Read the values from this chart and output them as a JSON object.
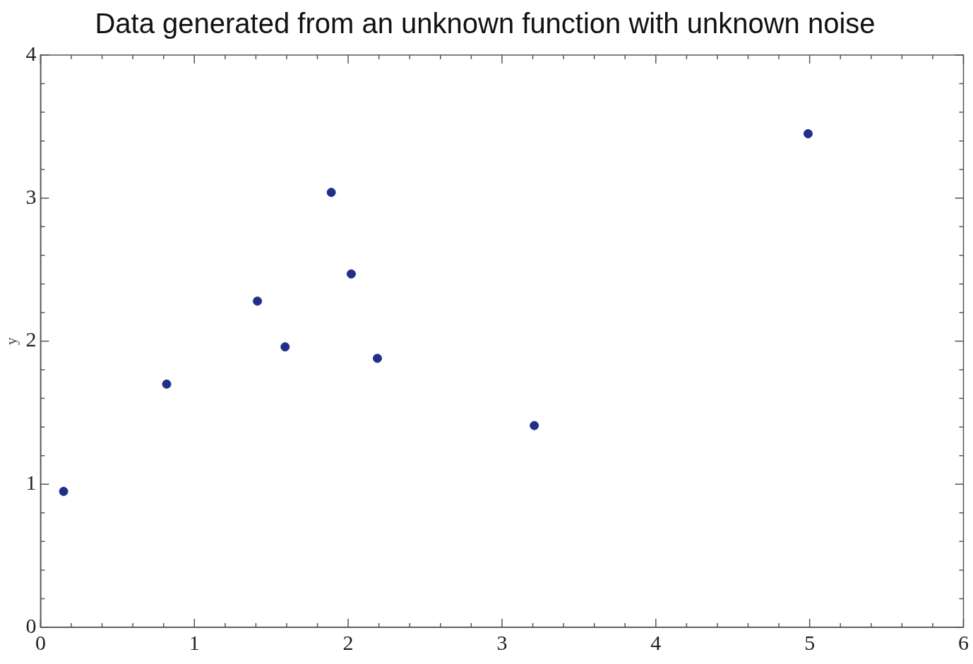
{
  "chart_data": {
    "type": "scatter",
    "title": "Data generated from an unknown function with unknown noise",
    "ylabel": "y",
    "x": [
      0.15,
      0.82,
      1.41,
      1.59,
      1.89,
      2.02,
      2.19,
      3.21,
      4.99
    ],
    "series": [
      {
        "color": "#1f2f8a",
        "values": [
          0.95,
          1.7,
          2.28,
          1.96,
          3.04,
          2.47,
          1.88,
          1.41,
          3.45
        ]
      }
    ],
    "xlim": [
      0,
      6
    ],
    "xticks": [
      0,
      {
        "value": 0.2,
        "label": null
      },
      {
        "value": 0.4,
        "label": null
      },
      {
        "value": 0.6,
        "label": null
      },
      {
        "value": 0.8,
        "label": null
      },
      1,
      {
        "value": 1.2,
        "label": null
      },
      {
        "value": 1.4,
        "label": null
      },
      {
        "value": 1.6,
        "label": null
      },
      {
        "value": 1.8,
        "label": null
      },
      2,
      {
        "value": 2.2,
        "label": null
      },
      {
        "value": 2.4,
        "label": null
      },
      {
        "value": 2.6,
        "label": null
      },
      {
        "value": 2.8,
        "label": null
      },
      3,
      {
        "value": 3.2,
        "label": null
      },
      {
        "value": 3.4,
        "label": null
      },
      {
        "value": 3.6,
        "label": null
      },
      {
        "value": 3.8,
        "label": null
      },
      4,
      {
        "value": 4.2,
        "label": null
      },
      {
        "value": 4.4,
        "label": null
      },
      {
        "value": 4.6,
        "label": null
      },
      {
        "value": 4.8,
        "label": null
      },
      5,
      {
        "value": 5.2,
        "label": null
      },
      {
        "value": 5.4,
        "label": null
      },
      {
        "value": 5.6,
        "label": null
      },
      {
        "value": 5.8,
        "label": null
      },
      6
    ],
    "ylim": [
      0,
      4
    ],
    "yticks": [
      0,
      {
        "value": 0.2,
        "label": null
      },
      {
        "value": 0.4,
        "label": null
      },
      {
        "value": 0.6,
        "label": null
      },
      {
        "value": 0.8,
        "label": null
      },
      1,
      {
        "value": 1.2,
        "label": null
      },
      {
        "value": 1.4,
        "label": null
      },
      {
        "value": 1.6,
        "label": null
      },
      {
        "value": 1.8,
        "label": null
      },
      2,
      {
        "value": 2.2,
        "label": null
      },
      {
        "value": 2.4,
        "label": null
      },
      {
        "value": 2.6,
        "label": null
      },
      {
        "value": 2.8,
        "label": null
      },
      3,
      {
        "value": 3.2,
        "label": null
      },
      {
        "value": 3.4,
        "label": null
      },
      {
        "value": 3.6,
        "label": null
      },
      {
        "value": 3.8,
        "label": null
      },
      4
    ],
    "grid": false,
    "legend": false,
    "marker": "circle"
  }
}
